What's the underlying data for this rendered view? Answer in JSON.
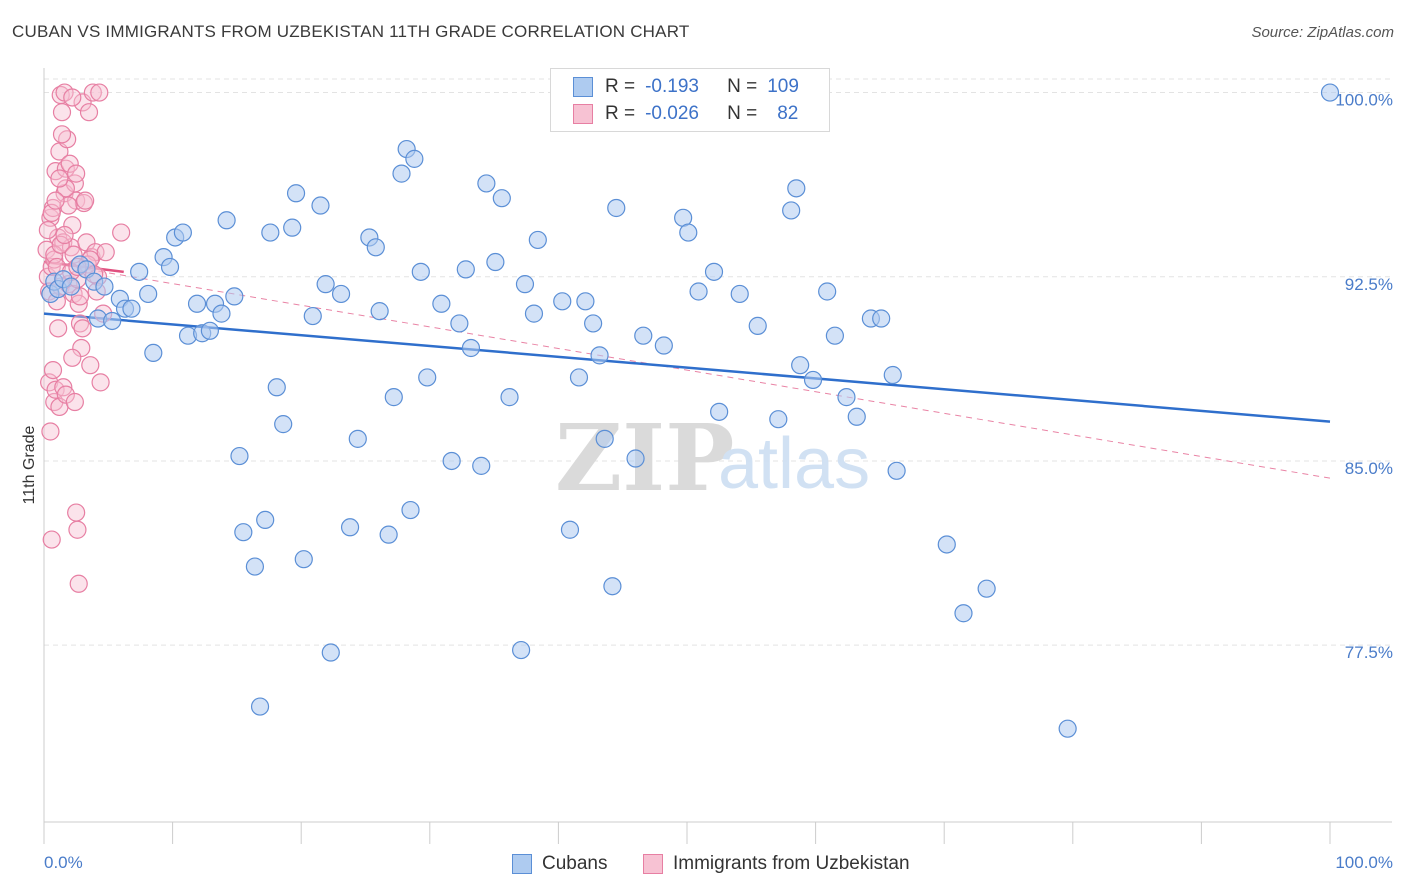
{
  "title": "CUBAN VS IMMIGRANTS FROM UZBEKISTAN 11TH GRADE CORRELATION CHART",
  "source": "Source: ZipAtlas.com",
  "watermark": {
    "zip": "ZIP",
    "atlas": "atlas"
  },
  "legend": {
    "r_label": "R =",
    "n_label": "N =",
    "rows": [
      {
        "r": "-0.193",
        "n": "109"
      },
      {
        "r": "-0.026",
        "n": "82"
      }
    ]
  },
  "bottom_legend": [
    "Cubans",
    "Immigrants from Uzbekistan"
  ],
  "colors": {
    "blue_fill": "#aecbf0",
    "blue_stroke": "#5b8fd6",
    "blue_line": "#2f6fcc",
    "pink_fill": "#f7c2d3",
    "pink_stroke": "#e77fa3",
    "pink_line": "#e0507f",
    "tick_text": "#4a7cc9",
    "grid": "#e3e3e3"
  },
  "chart_data": {
    "type": "scatter",
    "title": "CUBAN VS IMMIGRANTS FROM UZBEKISTAN 11TH GRADE CORRELATION CHART",
    "xlabel": "",
    "ylabel": "11th Grade",
    "xlim": [
      0,
      100
    ],
    "ylim": [
      70.3,
      101.0
    ],
    "x_tick_labels": [
      "0.0%",
      "100.0%"
    ],
    "y_ticks": [
      77.5,
      85.0,
      92.5,
      100.0
    ],
    "y_tick_labels": [
      "77.5%",
      "85.0%",
      "92.5%",
      "100.0%"
    ],
    "grid": true,
    "legend_position": "top-center",
    "series": [
      {
        "name": "Cubans",
        "color": "#5b8fd6",
        "trend": {
          "x": [
            0,
            100
          ],
          "y": [
            91.0,
            86.6
          ],
          "style": "solid"
        },
        "points": [
          [
            0.5,
            91.8
          ],
          [
            0.8,
            92.3
          ],
          [
            1.1,
            92.0
          ],
          [
            1.5,
            92.4
          ],
          [
            2.1,
            92.1
          ],
          [
            2.8,
            93.0
          ],
          [
            3.3,
            92.8
          ],
          [
            3.9,
            92.3
          ],
          [
            4.2,
            90.8
          ],
          [
            4.7,
            92.1
          ],
          [
            5.3,
            90.7
          ],
          [
            5.9,
            91.6
          ],
          [
            6.3,
            91.2
          ],
          [
            6.8,
            91.2
          ],
          [
            7.4,
            92.7
          ],
          [
            8.1,
            91.8
          ],
          [
            8.5,
            89.4
          ],
          [
            9.3,
            93.3
          ],
          [
            9.8,
            92.9
          ],
          [
            10.2,
            94.1
          ],
          [
            10.8,
            94.3
          ],
          [
            11.2,
            90.1
          ],
          [
            11.9,
            91.4
          ],
          [
            12.3,
            90.2
          ],
          [
            12.9,
            90.3
          ],
          [
            13.3,
            91.4
          ],
          [
            13.8,
            91.0
          ],
          [
            14.2,
            94.8
          ],
          [
            14.8,
            91.7
          ],
          [
            15.2,
            85.2
          ],
          [
            15.5,
            82.1
          ],
          [
            16.4,
            80.7
          ],
          [
            16.8,
            75.0
          ],
          [
            17.2,
            82.6
          ],
          [
            17.6,
            94.3
          ],
          [
            18.1,
            88.0
          ],
          [
            18.6,
            86.5
          ],
          [
            19.3,
            94.5
          ],
          [
            19.6,
            95.9
          ],
          [
            20.2,
            81.0
          ],
          [
            20.9,
            90.9
          ],
          [
            21.5,
            95.4
          ],
          [
            21.9,
            92.2
          ],
          [
            22.3,
            77.2
          ],
          [
            23.1,
            91.8
          ],
          [
            23.8,
            82.3
          ],
          [
            24.4,
            85.9
          ],
          [
            25.3,
            94.1
          ],
          [
            25.8,
            93.7
          ],
          [
            26.1,
            91.1
          ],
          [
            26.8,
            82.0
          ],
          [
            27.2,
            87.6
          ],
          [
            27.8,
            96.7
          ],
          [
            28.2,
            97.7
          ],
          [
            28.5,
            83.0
          ],
          [
            28.8,
            97.3
          ],
          [
            29.3,
            92.7
          ],
          [
            29.8,
            88.4
          ],
          [
            30.9,
            91.4
          ],
          [
            31.7,
            85.0
          ],
          [
            32.3,
            90.6
          ],
          [
            32.8,
            92.8
          ],
          [
            33.2,
            89.6
          ],
          [
            34.0,
            84.8
          ],
          [
            34.4,
            96.3
          ],
          [
            35.1,
            93.1
          ],
          [
            35.6,
            95.7
          ],
          [
            36.2,
            87.6
          ],
          [
            37.1,
            77.3
          ],
          [
            37.4,
            92.2
          ],
          [
            38.1,
            91.0
          ],
          [
            38.4,
            94.0
          ],
          [
            40.3,
            91.5
          ],
          [
            40.9,
            82.2
          ],
          [
            41.6,
            88.4
          ],
          [
            42.1,
            91.5
          ],
          [
            42.7,
            90.6
          ],
          [
            43.2,
            89.3
          ],
          [
            43.6,
            85.9
          ],
          [
            44.2,
            79.9
          ],
          [
            44.5,
            95.3
          ],
          [
            46.0,
            85.1
          ],
          [
            46.6,
            90.1
          ],
          [
            48.2,
            89.7
          ],
          [
            49.7,
            94.9
          ],
          [
            50.1,
            94.3
          ],
          [
            50.9,
            91.9
          ],
          [
            52.1,
            92.7
          ],
          [
            52.5,
            87.0
          ],
          [
            54.1,
            91.8
          ],
          [
            55.5,
            90.5
          ],
          [
            57.1,
            86.7
          ],
          [
            58.1,
            95.2
          ],
          [
            58.5,
            96.1
          ],
          [
            58.8,
            88.9
          ],
          [
            59.8,
            88.3
          ],
          [
            60.9,
            91.9
          ],
          [
            61.5,
            90.1
          ],
          [
            62.4,
            87.6
          ],
          [
            63.2,
            86.8
          ],
          [
            64.3,
            90.8
          ],
          [
            65.1,
            90.8
          ],
          [
            66.0,
            88.5
          ],
          [
            66.3,
            84.6
          ],
          [
            70.2,
            81.6
          ],
          [
            71.5,
            78.8
          ],
          [
            73.3,
            79.8
          ],
          [
            79.6,
            74.1
          ],
          [
            100.0,
            100.0
          ]
        ]
      },
      {
        "name": "Immigrants from Uzbekistan",
        "color": "#e77fa3",
        "trend": {
          "x": [
            0,
            6.2
          ],
          "y": [
            93.1,
            92.7
          ],
          "style": "solid"
        },
        "trend_extended": {
          "x": [
            0,
            100
          ],
          "y": [
            93.1,
            84.3
          ],
          "style": "dashed"
        },
        "points": [
          [
            0.2,
            93.6
          ],
          [
            0.3,
            92.5
          ],
          [
            0.4,
            91.9
          ],
          [
            0.5,
            94.9
          ],
          [
            0.6,
            92.9
          ],
          [
            0.7,
            95.3
          ],
          [
            0.8,
            93.2
          ],
          [
            0.9,
            96.8
          ],
          [
            1.0,
            91.5
          ],
          [
            1.1,
            94.1
          ],
          [
            1.2,
            97.6
          ],
          [
            1.3,
            92.1
          ],
          [
            1.4,
            99.2
          ],
          [
            1.5,
            93.9
          ],
          [
            1.6,
            95.9
          ],
          [
            1.7,
            96.9
          ],
          [
            1.8,
            98.1
          ],
          [
            1.9,
            92.2
          ],
          [
            2.0,
            97.1
          ],
          [
            2.1,
            93.7
          ],
          [
            2.2,
            94.6
          ],
          [
            2.3,
            91.8
          ],
          [
            2.4,
            96.3
          ],
          [
            2.5,
            95.6
          ],
          [
            2.6,
            92.4
          ],
          [
            2.7,
            91.4
          ],
          [
            2.8,
            90.6
          ],
          [
            2.9,
            89.6
          ],
          [
            3.0,
            99.6
          ],
          [
            3.1,
            95.5
          ],
          [
            3.3,
            93.9
          ],
          [
            3.5,
            99.2
          ],
          [
            3.6,
            88.9
          ],
          [
            3.7,
            93.3
          ],
          [
            3.8,
            100.0
          ],
          [
            4.0,
            93.5
          ],
          [
            4.2,
            92.5
          ],
          [
            4.4,
            88.2
          ],
          [
            4.6,
            91.0
          ],
          [
            4.8,
            93.5
          ],
          [
            0.4,
            88.2
          ],
          [
            0.5,
            86.2
          ],
          [
            0.6,
            81.8
          ],
          [
            0.7,
            88.7
          ],
          [
            0.8,
            87.4
          ],
          [
            0.9,
            87.9
          ],
          [
            1.1,
            90.4
          ],
          [
            1.2,
            87.2
          ],
          [
            1.5,
            88.0
          ],
          [
            1.7,
            87.7
          ],
          [
            2.2,
            89.2
          ],
          [
            2.4,
            87.4
          ],
          [
            2.5,
            82.9
          ],
          [
            2.6,
            82.2
          ],
          [
            2.7,
            80.0
          ],
          [
            1.3,
            99.9
          ],
          [
            1.6,
            100.0
          ],
          [
            2.2,
            99.8
          ],
          [
            4.3,
            100.0
          ],
          [
            1.4,
            98.3
          ],
          [
            0.3,
            94.4
          ],
          [
            0.6,
            95.1
          ],
          [
            0.8,
            93.4
          ],
          [
            1.0,
            92.9
          ],
          [
            1.3,
            93.8
          ],
          [
            1.6,
            94.2
          ],
          [
            1.9,
            95.4
          ],
          [
            2.1,
            92.7
          ],
          [
            2.3,
            93.4
          ],
          [
            2.5,
            96.7
          ],
          [
            2.8,
            91.7
          ],
          [
            3.2,
            95.6
          ],
          [
            3.4,
            93.0
          ],
          [
            3.6,
            93.2
          ],
          [
            3.9,
            92.6
          ],
          [
            4.1,
            91.9
          ],
          [
            6.0,
            94.3
          ],
          [
            1.7,
            96.1
          ],
          [
            1.2,
            96.5
          ],
          [
            0.9,
            95.6
          ],
          [
            2.6,
            92.9
          ],
          [
            3.0,
            90.4
          ]
        ]
      }
    ]
  }
}
